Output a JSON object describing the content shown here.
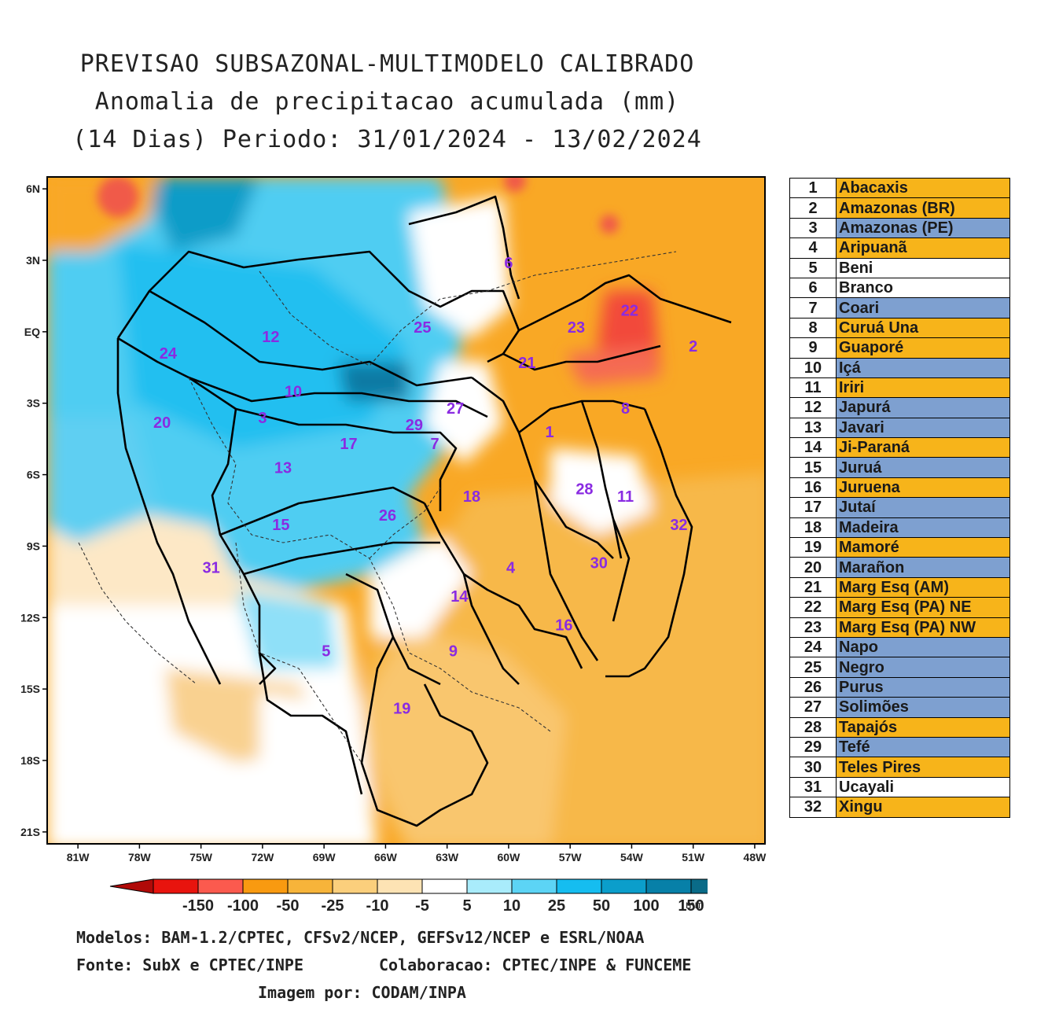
{
  "title": {
    "line1": "PREVISAO SUBSAZONAL-MULTIMODELO CALIBRADO",
    "line2": "Anomalia de precipitacao acumulada (mm)",
    "line3": "(14 Dias) Periodo: 31/01/2024 - 13/02/2024"
  },
  "map": {
    "lat_labels": [
      "6N",
      "3N",
      "EQ",
      "3S",
      "6S",
      "9S",
      "12S",
      "15S",
      "18S",
      "21S"
    ],
    "lon_labels": [
      "81W",
      "78W",
      "75W",
      "72W",
      "69W",
      "66W",
      "63W",
      "60W",
      "57W",
      "54W",
      "51W",
      "48W"
    ],
    "basin_numbers": [
      {
        "id": "6",
        "lon": -60.0,
        "lat": 2.9
      },
      {
        "id": "22",
        "lon": -54.1,
        "lat": 0.9
      },
      {
        "id": "23",
        "lon": -56.7,
        "lat": 0.2
      },
      {
        "id": "25",
        "lon": -64.2,
        "lat": 0.2
      },
      {
        "id": "12",
        "lon": -71.6,
        "lat": -0.2
      },
      {
        "id": "2",
        "lon": -51.0,
        "lat": -0.6
      },
      {
        "id": "24",
        "lon": -76.6,
        "lat": -0.9
      },
      {
        "id": "21",
        "lon": -59.1,
        "lat": -1.3
      },
      {
        "id": "10",
        "lon": -70.5,
        "lat": -2.5
      },
      {
        "id": "8",
        "lon": -54.3,
        "lat": -3.2
      },
      {
        "id": "27",
        "lon": -62.6,
        "lat": -3.2
      },
      {
        "id": "3",
        "lon": -72.0,
        "lat": -3.6
      },
      {
        "id": "20",
        "lon": -76.9,
        "lat": -3.8
      },
      {
        "id": "29",
        "lon": -64.6,
        "lat": -3.9
      },
      {
        "id": "1",
        "lon": -58.0,
        "lat": -4.2
      },
      {
        "id": "7",
        "lon": -63.6,
        "lat": -4.7
      },
      {
        "id": "17",
        "lon": -67.8,
        "lat": -4.7
      },
      {
        "id": "13",
        "lon": -71.0,
        "lat": -5.7
      },
      {
        "id": "28",
        "lon": -56.3,
        "lat": -6.6
      },
      {
        "id": "11",
        "lon": -54.3,
        "lat": -6.9
      },
      {
        "id": "18",
        "lon": -61.8,
        "lat": -6.9
      },
      {
        "id": "26",
        "lon": -65.9,
        "lat": -7.7
      },
      {
        "id": "32",
        "lon": -51.7,
        "lat": -8.1
      },
      {
        "id": "15",
        "lon": -71.1,
        "lat": -8.1
      },
      {
        "id": "4",
        "lon": -59.9,
        "lat": -9.9
      },
      {
        "id": "31",
        "lon": -74.5,
        "lat": -9.9
      },
      {
        "id": "30",
        "lon": -55.6,
        "lat": -9.7
      },
      {
        "id": "14",
        "lon": -62.4,
        "lat": -11.1
      },
      {
        "id": "16",
        "lon": -57.3,
        "lat": -12.3
      },
      {
        "id": "5",
        "lon": -68.9,
        "lat": -13.4
      },
      {
        "id": "9",
        "lon": -62.7,
        "lat": -13.4
      },
      {
        "id": "19",
        "lon": -65.2,
        "lat": -15.8
      }
    ]
  },
  "legend": [
    {
      "num": "1",
      "name": "Abacaxis",
      "color": "#f7b41a"
    },
    {
      "num": "2",
      "name": "Amazonas (BR)",
      "color": "#f7b41a"
    },
    {
      "num": "3",
      "name": "Amazonas (PE)",
      "color": "#7ea0d0"
    },
    {
      "num": "4",
      "name": "Aripuanã",
      "color": "#f7b41a"
    },
    {
      "num": "5",
      "name": "Beni",
      "color": "#ffffff"
    },
    {
      "num": "6",
      "name": "Branco",
      "color": "#ffffff"
    },
    {
      "num": "7",
      "name": "Coari",
      "color": "#7ea0d0"
    },
    {
      "num": "8",
      "name": "Curuá Una",
      "color": "#f7b41a"
    },
    {
      "num": "9",
      "name": "Guaporé",
      "color": "#f7b41a"
    },
    {
      "num": "10",
      "name": "Içá",
      "color": "#7ea0d0"
    },
    {
      "num": "11",
      "name": "Iriri",
      "color": "#f7b41a"
    },
    {
      "num": "12",
      "name": "Japurá",
      "color": "#7ea0d0"
    },
    {
      "num": "13",
      "name": "Javari",
      "color": "#7ea0d0"
    },
    {
      "num": "14",
      "name": "Ji-Paraná",
      "color": "#f7b41a"
    },
    {
      "num": "15",
      "name": "Juruá",
      "color": "#7ea0d0"
    },
    {
      "num": "16",
      "name": "Juruena",
      "color": "#f7b41a"
    },
    {
      "num": "17",
      "name": "Jutaí",
      "color": "#7ea0d0"
    },
    {
      "num": "18",
      "name": "Madeira",
      "color": "#7ea0d0"
    },
    {
      "num": "19",
      "name": "Mamoré",
      "color": "#f7b41a"
    },
    {
      "num": "20",
      "name": "Marañon",
      "color": "#7ea0d0"
    },
    {
      "num": "21",
      "name": "Marg Esq (AM)",
      "color": "#f7b41a"
    },
    {
      "num": "22",
      "name": "Marg Esq (PA) NE",
      "color": "#f7b41a"
    },
    {
      "num": "23",
      "name": "Marg Esq (PA) NW",
      "color": "#f7b41a"
    },
    {
      "num": "24",
      "name": "Napo",
      "color": "#7ea0d0"
    },
    {
      "num": "25",
      "name": "Negro",
      "color": "#7ea0d0"
    },
    {
      "num": "26",
      "name": "Purus",
      "color": "#7ea0d0"
    },
    {
      "num": "27",
      "name": "Solimões",
      "color": "#7ea0d0"
    },
    {
      "num": "28",
      "name": "Tapajós",
      "color": "#f7b41a"
    },
    {
      "num": "29",
      "name": "Tefé",
      "color": "#7ea0d0"
    },
    {
      "num": "30",
      "name": "Teles Pires",
      "color": "#f7b41a"
    },
    {
      "num": "31",
      "name": "Ucayali",
      "color": "#ffffff"
    },
    {
      "num": "32",
      "name": "Xingu",
      "color": "#f7b41a"
    }
  ],
  "colorbar": {
    "labels": [
      "-150",
      "-100",
      "-50",
      "-25",
      "-10",
      "-5",
      "5",
      "10",
      "25",
      "50",
      "100",
      "150"
    ],
    "unit": "mm",
    "colors": [
      "#e8140e",
      "#fb5a4e",
      "#f99a10",
      "#f7b43a",
      "#fbcf7c",
      "#fde3b4",
      "#ffffff",
      "#a9ecfb",
      "#5cd4f5",
      "#15bdf0",
      "#0b9ecb",
      "#0780a8",
      "#0a6b88"
    ],
    "end_low_color": "#b00a08",
    "end_high_color": "#054e66"
  },
  "credits": {
    "models": "Modelos: BAM-1.2/CPTEC, CFSv2/NCEP, GEFSv12/NCEP e ESRL/NOAA",
    "source": "Fonte: SubX e CPTEC/INPE",
    "collab": "Colaboracao: CPTEC/INPE & FUNCEME",
    "image": "Imagem por: CODAM/INPA"
  }
}
